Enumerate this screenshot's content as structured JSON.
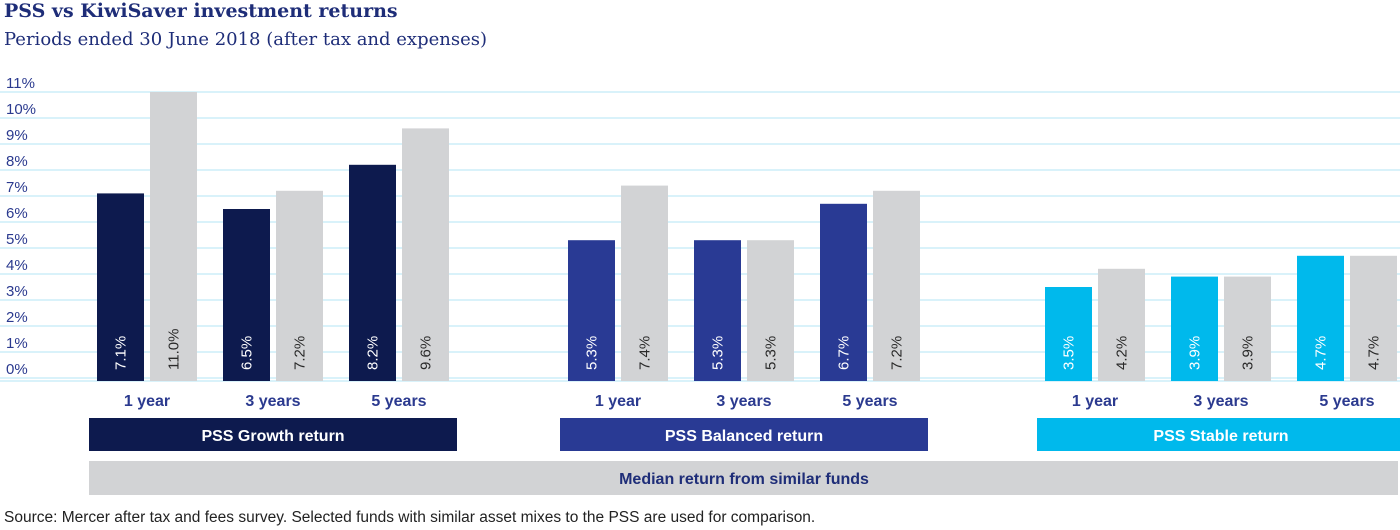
{
  "title": "PSS vs KiwiSaver investment returns",
  "subtitle": "Periods ended 30 June 2018 (after tax and expenses)",
  "source": "Source: Mercer after tax and fees survey. Selected funds with similar asset mixes to the PSS are used for comparison.",
  "chart_data": {
    "type": "bar",
    "ylim": [
      0,
      11
    ],
    "yticks": [
      "0%",
      "1%",
      "2%",
      "3%",
      "4%",
      "5%",
      "6%",
      "7%",
      "8%",
      "9%",
      "10%",
      "11%"
    ],
    "grid": true,
    "periods": [
      "1 year",
      "3 years",
      "5 years"
    ],
    "groups": [
      {
        "name": "PSS Growth return",
        "color": "#0d1a4e",
        "pss": [
          7.1,
          6.5,
          8.2
        ],
        "pss_labels": [
          "7.1%",
          "6.5%",
          "8.2%"
        ],
        "median": [
          11.0,
          7.2,
          9.6
        ],
        "median_labels": [
          "11.0%",
          "7.2%",
          "9.6%"
        ]
      },
      {
        "name": "PSS Balanced return",
        "color": "#293a94",
        "pss": [
          5.3,
          5.3,
          6.7
        ],
        "pss_labels": [
          "5.3%",
          "5.3%",
          "6.7%"
        ],
        "median": [
          7.4,
          5.3,
          7.2
        ],
        "median_labels": [
          "7.4%",
          "5.3%",
          "7.2%"
        ]
      },
      {
        "name": "PSS Stable return",
        "color": "#00b9ec",
        "pss": [
          3.5,
          3.9,
          4.7
        ],
        "pss_labels": [
          "3.5%",
          "3.9%",
          "4.7%"
        ],
        "median": [
          4.2,
          3.9,
          4.7
        ],
        "median_labels": [
          "4.2%",
          "3.9%",
          "4.7%"
        ]
      }
    ],
    "median_series": {
      "name": "Median return from similar funds",
      "color": "#d2d3d5"
    },
    "grid_color": "#b3e4f6",
    "label_color": "#2b3a8f"
  }
}
